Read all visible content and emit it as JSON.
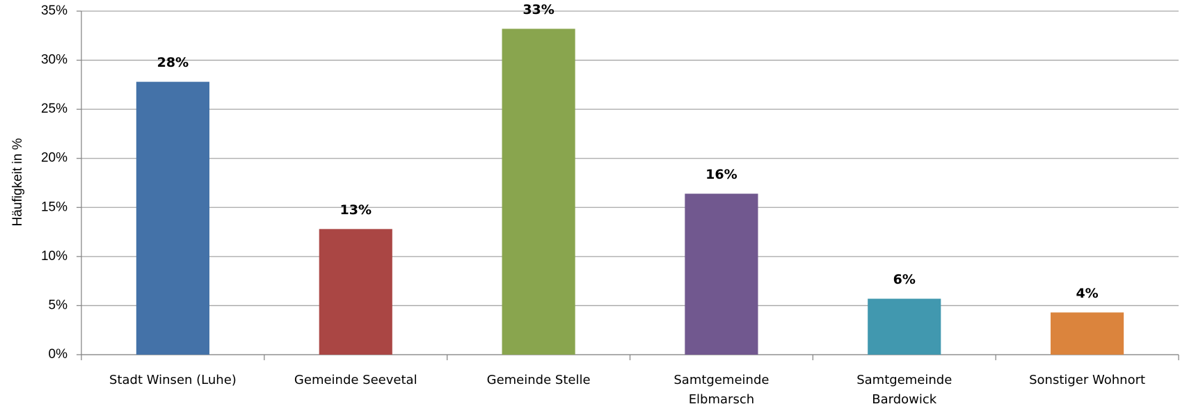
{
  "chart_data": {
    "type": "bar",
    "y_label": "Häufigkeit in %",
    "categories": [
      "Stadt Winsen (Luhe)",
      "Gemeinde Seevetal",
      "Gemeinde Stelle",
      "Samtgemeinde Elbmarsch",
      "Samtgemeinde Bardowick",
      "Sonstiger Wohnort"
    ],
    "values": [
      27.8,
      12.8,
      33.2,
      16.4,
      5.7,
      4.3
    ],
    "value_labels": [
      "28%",
      "13%",
      "33%",
      "16%",
      "6%",
      "4%"
    ],
    "colors": [
      "#4472a8",
      "#aa4644",
      "#89a54e",
      "#71588f",
      "#4198af",
      "#db843d"
    ],
    "ylim": [
      0,
      35
    ],
    "yticks": [
      {
        "value": 0,
        "label": "0%"
      },
      {
        "value": 5,
        "label": "5%"
      },
      {
        "value": 10,
        "label": "10%"
      },
      {
        "value": 15,
        "label": "15%"
      },
      {
        "value": 20,
        "label": "20%"
      },
      {
        "value": 25,
        "label": "25%"
      },
      {
        "value": 30,
        "label": "30%"
      },
      {
        "value": 35,
        "label": "35%"
      }
    ],
    "grid": true
  }
}
